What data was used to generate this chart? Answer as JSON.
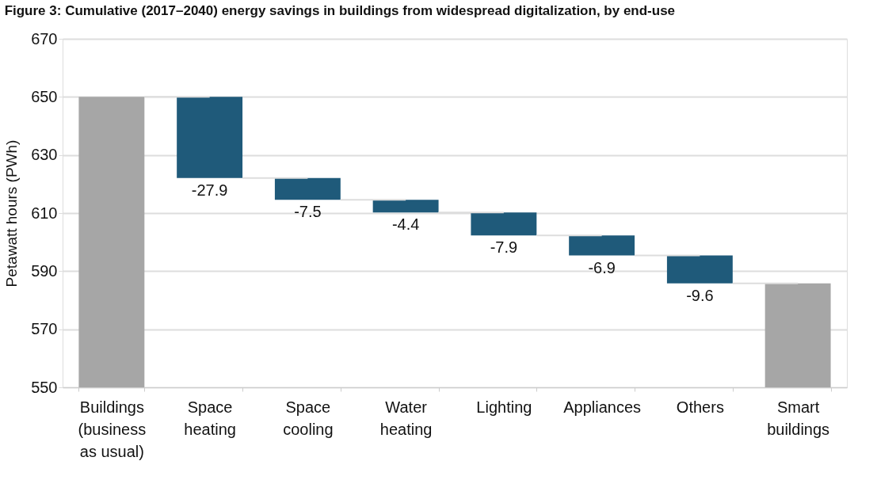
{
  "chart_data": {
    "type": "bar",
    "title": "Figure 3: Cumulative (2017–2040) energy savings in buildings from widespread digitalization, by end-use",
    "ylabel": "Petawatt hours (PWh)",
    "categories": [
      "Buildings\n(business\nas usual)",
      "Space\nheating",
      "Space\ncooling",
      "Water\nheating",
      "Lighting",
      "Appliances",
      "Others",
      "Smart\nbuildings"
    ],
    "values": [
      650,
      -27.9,
      -7.5,
      -4.4,
      -7.9,
      -6.9,
      -9.6,
      585.8
    ],
    "base": [
      null,
      650,
      622.1,
      614.6,
      610.2,
      602.3,
      595.4,
      null
    ],
    "colors": [
      "#a6a6a6",
      "#1f5a7a",
      "#1f5a7a",
      "#1f5a7a",
      "#1f5a7a",
      "#1f5a7a",
      "#1f5a7a",
      "#a6a6a6"
    ],
    "value_labels": [
      null,
      "-27.9",
      "-7.5",
      "-4.4",
      "-7.9",
      "-6.9",
      "-9.6",
      null
    ],
    "ylim": [
      550,
      670
    ],
    "yticks": [
      550,
      570,
      590,
      610,
      630,
      650,
      670
    ],
    "grid": "y"
  }
}
